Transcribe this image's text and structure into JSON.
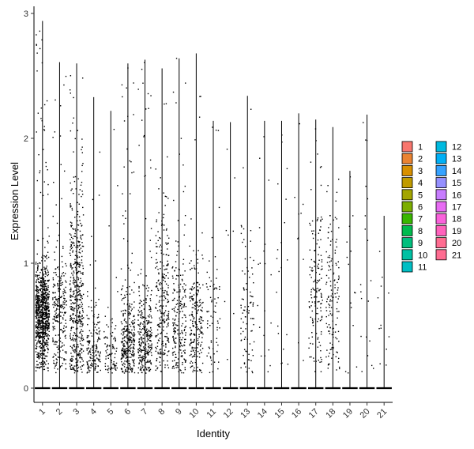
{
  "chart_data": {
    "type": "violin",
    "xlabel": "Identity",
    "ylabel": "Expression Level",
    "ylim": [
      0,
      3
    ],
    "y_ticks": [
      0,
      1,
      2,
      3
    ],
    "categories": [
      "1",
      "2",
      "3",
      "4",
      "5",
      "6",
      "7",
      "8",
      "9",
      "10",
      "11",
      "12",
      "13",
      "14",
      "15",
      "16",
      "17",
      "18",
      "19",
      "20",
      "21"
    ],
    "legend": {
      "position": "right",
      "columns": [
        [
          "1",
          "2",
          "3",
          "4",
          "5",
          "6",
          "7",
          "8",
          "9",
          "10",
          "11"
        ],
        [
          "12",
          "13",
          "14",
          "15",
          "16",
          "17",
          "18",
          "19",
          "20",
          "21"
        ]
      ]
    },
    "series": [
      {
        "name": "1",
        "max": 2.94,
        "n_points": 900,
        "center": 0.58,
        "spread": 0.2
      },
      {
        "name": "2",
        "max": 2.61,
        "n_points": 260,
        "center": 0.6,
        "spread": 0.28
      },
      {
        "name": "3",
        "max": 2.6,
        "n_points": 480,
        "center": 0.7,
        "spread": 0.45
      },
      {
        "name": "4",
        "max": 2.33,
        "n_points": 160,
        "center": 0.3,
        "spread": 0.2
      },
      {
        "name": "5",
        "max": 2.22,
        "n_points": 90,
        "center": 0.25,
        "spread": 0.18
      },
      {
        "name": "6",
        "max": 2.6,
        "n_points": 320,
        "center": 0.38,
        "spread": 0.22
      },
      {
        "name": "7",
        "max": 2.63,
        "n_points": 300,
        "center": 0.38,
        "spread": 0.22
      },
      {
        "name": "8",
        "max": 2.56,
        "n_points": 260,
        "center": 0.7,
        "spread": 0.4
      },
      {
        "name": "9",
        "max": 2.64,
        "n_points": 220,
        "center": 0.5,
        "spread": 0.28
      },
      {
        "name": "10",
        "max": 2.68,
        "n_points": 220,
        "center": 0.5,
        "spread": 0.25
      },
      {
        "name": "11",
        "max": 2.14,
        "n_points": 70,
        "center": 0.55,
        "spread": 0.22
      },
      {
        "name": "12",
        "max": 2.13,
        "n_points": 8,
        "center": 1.2,
        "spread": 0.6
      },
      {
        "name": "13",
        "max": 2.34,
        "n_points": 90,
        "center": 0.65,
        "spread": 0.3
      },
      {
        "name": "14",
        "max": 2.14,
        "n_points": 20,
        "center": 0.8,
        "spread": 0.6
      },
      {
        "name": "15",
        "max": 2.14,
        "n_points": 20,
        "center": 0.9,
        "spread": 0.7
      },
      {
        "name": "16",
        "max": 2.2,
        "n_points": 10,
        "center": 0.8,
        "spread": 0.6
      },
      {
        "name": "17",
        "max": 2.15,
        "n_points": 150,
        "center": 0.85,
        "spread": 0.35
      },
      {
        "name": "18",
        "max": 2.09,
        "n_points": 140,
        "center": 0.7,
        "spread": 0.35
      },
      {
        "name": "19",
        "max": 1.74,
        "n_points": 15,
        "center": 0.6,
        "spread": 0.5
      },
      {
        "name": "20",
        "max": 2.19,
        "n_points": 20,
        "center": 0.9,
        "spread": 0.6
      },
      {
        "name": "21",
        "max": 1.38,
        "n_points": 12,
        "center": 0.6,
        "spread": 0.4
      }
    ],
    "colors": [
      "#F8766D",
      "#EA8331",
      "#D89000",
      "#C09B00",
      "#A3A500",
      "#7CAE00",
      "#39B600",
      "#00BB4E",
      "#00BF7D",
      "#00C1A3",
      "#00BFC4",
      "#00BAE0",
      "#00B0F6",
      "#35A2FF",
      "#9590FF",
      "#C77CFF",
      "#E76BF3",
      "#FA62DB",
      "#FF62BC",
      "#FF6C91",
      "#FF6C91"
    ]
  }
}
